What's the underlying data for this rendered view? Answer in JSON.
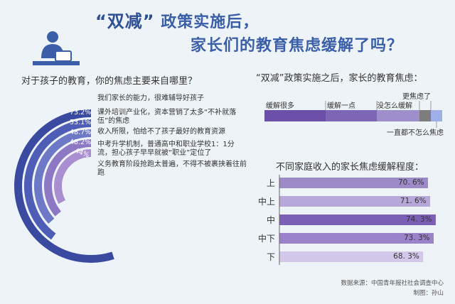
{
  "headline": {
    "line1_quote": "“双减”",
    "line1_rest": "政策实施后，",
    "line2": "家长们的教育焦虑缓解了吗？"
  },
  "chart_data": [
    {
      "type": "radial-bar",
      "title": "对于孩子的教育，你的焦虑主要来自哪里？",
      "items": [
        {
          "label": "我们家长的能力，很难辅导好孩子",
          "value": 73.2,
          "display": "73.2%",
          "color": "#3a4aa0"
        },
        {
          "label": "课外培训产业化，资本营销了太多“不补就落伍”的焦虑",
          "value": 53.1,
          "display": "53.1%",
          "color": "#4e5db5"
        },
        {
          "label": "收入所限，怕给不了孩子最好的教育资源",
          "value": 48.7,
          "display": "48.7%",
          "color": "#6d79c7"
        },
        {
          "label": "中考升学机制，普通高中和职业学校1：1分流，担心孩子早早就被“职业”定位了",
          "value": 48.2,
          "display": "48.2%",
          "color": "#8c78c4"
        },
        {
          "label": "义务教育阶段抢跑太普遍，不得不被裹挟着往前跑",
          "value": 44,
          "display": "44%",
          "color": "#a98fd2"
        }
      ]
    },
    {
      "type": "stacked-bar",
      "title": "“双减”政策实施之后，家长的教育焦虑：",
      "segments": [
        {
          "label": "缓解很多",
          "color": "#6b4fa8"
        },
        {
          "label": "缓解一点",
          "color": "#7e66b7"
        },
        {
          "label": "没怎么缓解",
          "color": "#9e8fcc"
        },
        {
          "label": "更焦虑了",
          "color": "#7d7d7d"
        },
        {
          "label": "一直都不怎么焦虑",
          "color": "#9fb0e8"
        }
      ]
    },
    {
      "type": "bar",
      "title": "不同家庭收入的家长焦虑缓解程度：",
      "categories": [
        "上",
        "中上",
        "中",
        "中下",
        "下"
      ],
      "values": [
        70.6,
        71.6,
        74.3,
        73.3,
        68.3
      ],
      "display": [
        "70. 6%",
        "71. 6%",
        "74. 3%",
        "73. 3%",
        "68. 3%"
      ],
      "colors": [
        "#9d8bc7",
        "#b7a8da",
        "#7b5fb4",
        "#9a83c8",
        "#d4c8ea"
      ]
    }
  ],
  "footer": {
    "source": "数据来源：中国青年报社社会调查中心",
    "credit": "制图：孙山"
  }
}
